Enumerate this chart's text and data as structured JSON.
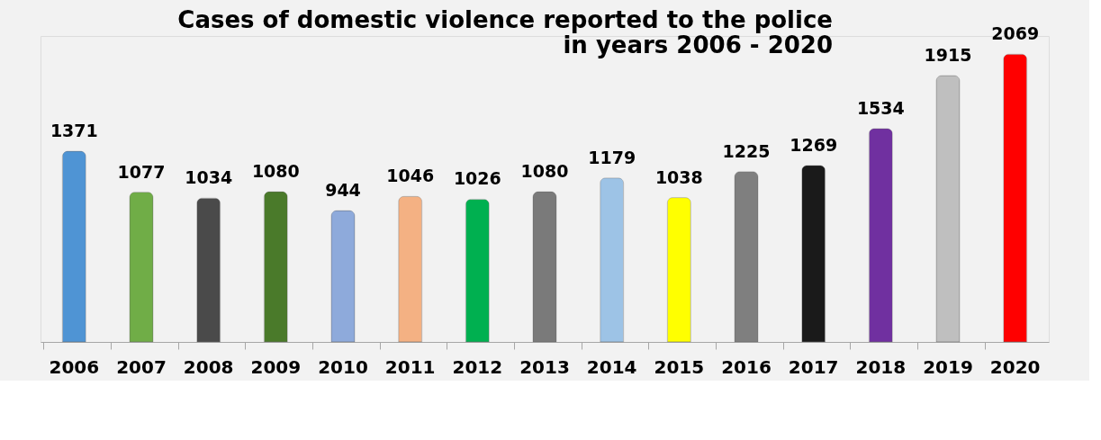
{
  "chart_data": {
    "type": "bar",
    "title": "Cases of domestic violence reported to the police in years 2006 - 2020",
    "categories": [
      "2006",
      "2007",
      "2008",
      "2009",
      "2010",
      "2011",
      "2012",
      "2013",
      "2014",
      "2015",
      "2016",
      "2017",
      "2018",
      "2019",
      "2020"
    ],
    "values": [
      1371,
      1077,
      1034,
      1080,
      944,
      1046,
      1026,
      1080,
      1179,
      1038,
      1225,
      1269,
      1534,
      1915,
      2069
    ],
    "colors": [
      "#4f94d4",
      "#70ad47",
      "#4a4a4a",
      "#4a7a2a",
      "#8eaadb",
      "#f4b183",
      "#00b050",
      "#7a7a7a",
      "#9dc3e6",
      "#ffff00",
      "#7f7f7f",
      "#1a1a1a",
      "#7030a0",
      "#bfbfbf",
      "#ff0000"
    ],
    "data_labels": true,
    "grid": false
  }
}
